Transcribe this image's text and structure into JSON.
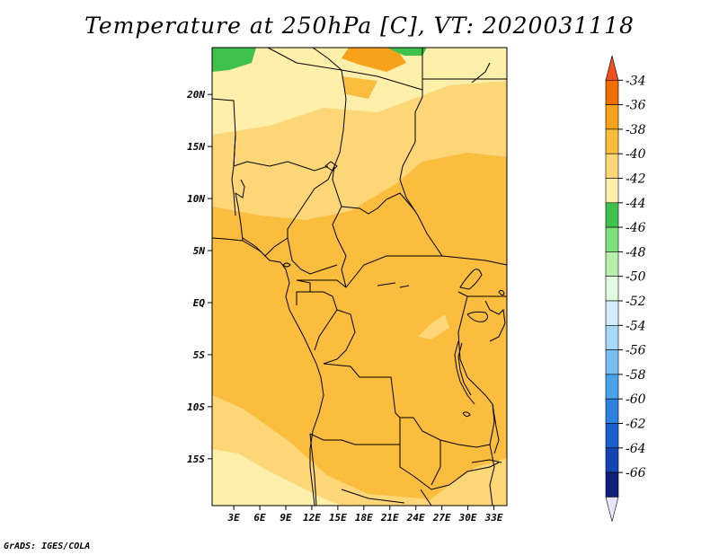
{
  "title": "Temperature at 250hPa [C], VT: 2020031118",
  "credit": "GrADS: IGES/COLA",
  "map": {
    "lat_labels": [
      "20N",
      "15N",
      "10N",
      "5N",
      "EQ",
      "5S",
      "10S",
      "15S"
    ],
    "lon_labels": [
      "3E",
      "6E",
      "9E",
      "12E",
      "15E",
      "18E",
      "21E",
      "24E",
      "27E",
      "30E",
      "33E"
    ],
    "lat_range": [
      -19.5,
      24.5
    ],
    "lon_range": [
      0.5,
      34.5
    ],
    "field_colors": {
      "-36_-34": "#f06e00",
      "-38_-36": "#f7a21a",
      "-40_-38": "#fbbd3d",
      "-42_-40": "#fdd677",
      "-44_-42": "#fef0aa",
      "-46_-44": "#3fc24b"
    }
  },
  "colorbar": {
    "labels": [
      "-34",
      "-36",
      "-38",
      "-40",
      "-42",
      "-44",
      "-46",
      "-48",
      "-50",
      "-52",
      "-54",
      "-56",
      "-58",
      "-60",
      "-62",
      "-64",
      "-66"
    ],
    "colors": [
      "#f0501e",
      "#f06e00",
      "#f7a21a",
      "#fbbd3d",
      "#fdd677",
      "#fef0aa",
      "#3fc24b",
      "#7ee07b",
      "#b6f0aa",
      "#e1fbe1",
      "#d2ecfb",
      "#a6d8f7",
      "#78bff2",
      "#4aa2eb",
      "#2b82e0",
      "#1a5fce",
      "#1445b3",
      "#0f1f7a",
      "#e6e6fa"
    ]
  }
}
